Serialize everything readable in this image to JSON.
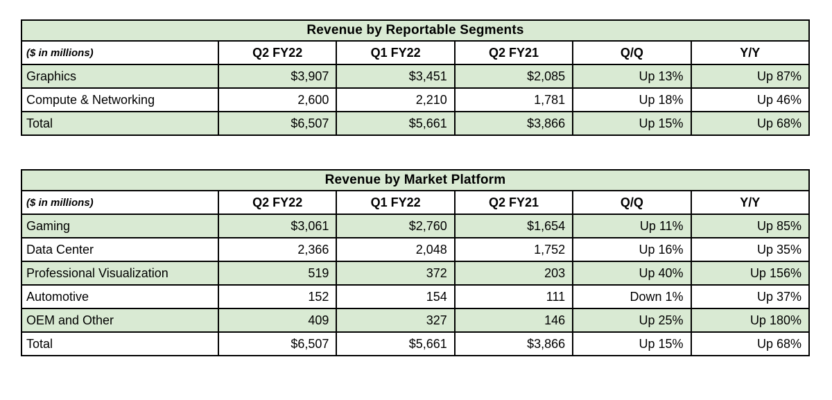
{
  "chart_data": [
    {
      "type": "table",
      "title": "Revenue by Reportable Segments",
      "unit_label": "($ in millions)",
      "columns": [
        "Q2 FY22",
        "Q1 FY22",
        "Q2 FY21",
        "Q/Q",
        "Y/Y"
      ],
      "rows": [
        {
          "label": "Graphics",
          "cells": [
            "$3,907",
            "$3,451",
            "$2,085",
            "Up 13%",
            "Up 87%"
          ]
        },
        {
          "label": "Compute & Networking",
          "cells": [
            "2,600",
            "2,210",
            "1,781",
            "Up 18%",
            "Up 46%"
          ]
        },
        {
          "label": "Total",
          "cells": [
            "$6,507",
            "$5,661",
            "$3,866",
            "Up 15%",
            "Up 68%"
          ]
        }
      ]
    },
    {
      "type": "table",
      "title": "Revenue by Market Platform",
      "unit_label": "($ in millions)",
      "columns": [
        "Q2 FY22",
        "Q1 FY22",
        "Q2 FY21",
        "Q/Q",
        "Y/Y"
      ],
      "rows": [
        {
          "label": "Gaming",
          "cells": [
            "$3,061",
            "$2,760",
            "$1,654",
            "Up 11%",
            "Up 85%"
          ]
        },
        {
          "label": "Data Center",
          "cells": [
            "2,366",
            "2,048",
            "1,752",
            "Up 16%",
            "Up 35%"
          ]
        },
        {
          "label": "Professional Visualization",
          "cells": [
            "519",
            "372",
            "203",
            "Up 40%",
            "Up 156%"
          ]
        },
        {
          "label": "Automotive",
          "cells": [
            "152",
            "154",
            "111",
            "Down 1%",
            "Up 37%"
          ]
        },
        {
          "label": "OEM and Other",
          "cells": [
            "409",
            "327",
            "146",
            "Up 25%",
            "Up 180%"
          ]
        },
        {
          "label": "Total",
          "cells": [
            "$6,507",
            "$5,661",
            "$3,866",
            "Up 15%",
            "Up 68%"
          ]
        }
      ]
    }
  ],
  "colors": {
    "table_green": "#d9ead3",
    "border": "#000000",
    "text": "#000000"
  }
}
